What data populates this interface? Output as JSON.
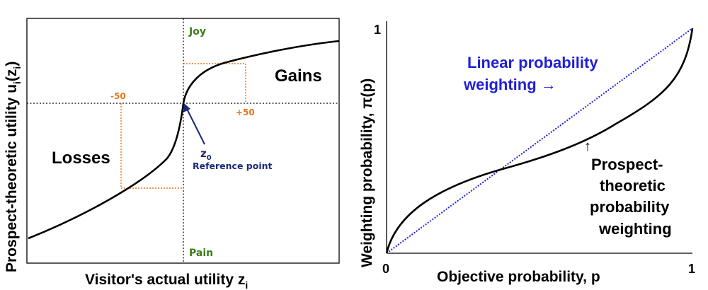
{
  "left_panel": {
    "y_axis_label": "Prospect-theoretic utility u",
    "y_axis_sub": "i",
    "y_axis_paren": "(z",
    "y_axis_paren_sub": "i",
    "y_axis_close": ")",
    "x_axis_label": "Visitor's actual utility z",
    "x_axis_sub": "i",
    "joy": "Joy",
    "pain": "Pain",
    "gains": "Gains",
    "losses": "Losses",
    "minus50": "-50",
    "plus50": "+50",
    "z0": "z",
    "z0_sub": "0",
    "reference": "Reference point",
    "colors": {
      "curve": "#000000",
      "dotted_orange": "#e8751a",
      "green": "#3a7d1a",
      "navy": "#1a2a7a"
    }
  },
  "right_panel": {
    "y_axis_label": "Weighting probability, π(p)",
    "x_axis_label": "Objective probability, p",
    "tick_0": "0",
    "tick_1_x": "1",
    "tick_1_y": "1",
    "linear_line1": "Linear probability",
    "linear_line2": "weighting →",
    "arrow_up": "↑",
    "pt_line1": "Prospect-",
    "pt_line2": "theoretic",
    "pt_line3": "probability",
    "pt_line4": "weighting",
    "colors": {
      "linear": "#1f1fd6",
      "curve": "#000000"
    }
  }
}
